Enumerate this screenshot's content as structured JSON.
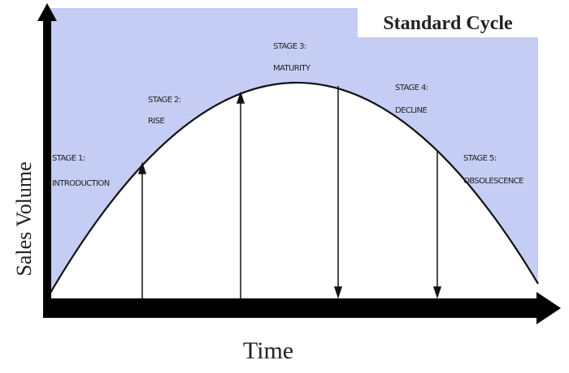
{
  "title": "Standard Cycle",
  "y_axis_label": "Sales Volume",
  "x_axis_label": "Time",
  "stages": [
    {
      "number": "STAGE 1:",
      "name": "INTRODUCTION"
    },
    {
      "number": "STAGE 2:",
      "name": "RISE"
    },
    {
      "number": "STAGE 3:",
      "name": "MATURITY"
    },
    {
      "number": "STAGE 4:",
      "name": "DECLINE"
    },
    {
      "number": "STAGE 5:",
      "name": "OBSOLESCENCE"
    }
  ]
}
